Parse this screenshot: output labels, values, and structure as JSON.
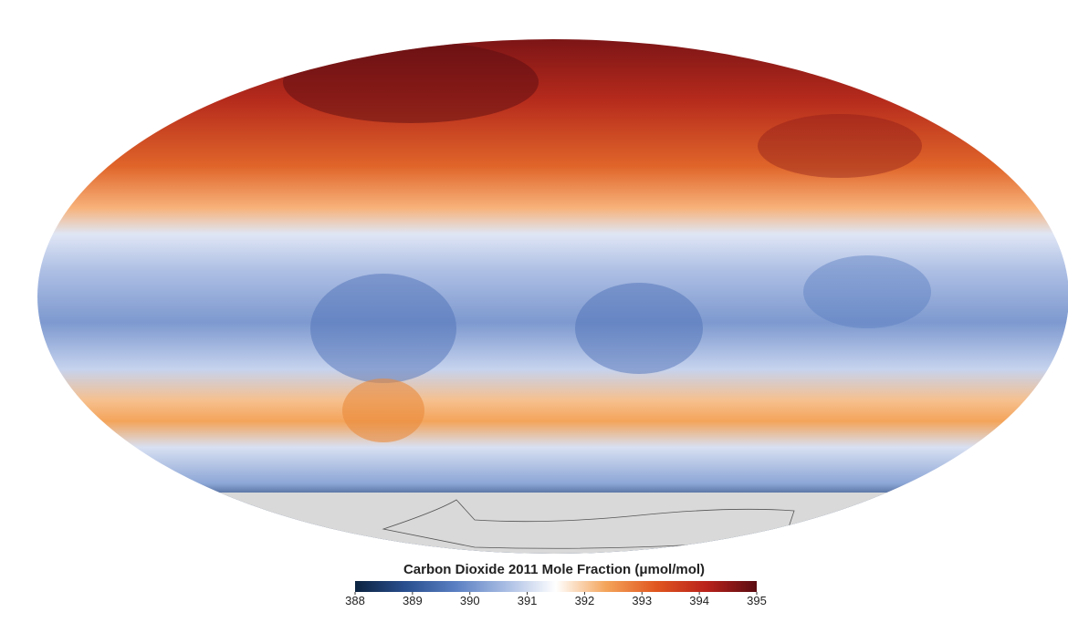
{
  "map": {
    "title": "Carbon Dioxide 2011 Mole Fraction (μmol/mol)",
    "colorbar": {
      "range": [
        388,
        395
      ],
      "ticks": [
        388,
        389,
        390,
        391,
        392,
        393,
        394,
        395
      ],
      "colors": [
        "#0b2340",
        "#2a4f8f",
        "#5a7fc2",
        "#a9bde3",
        "#ffffff",
        "#f4a45a",
        "#e0561f",
        "#b9221b",
        "#5a0c12"
      ]
    }
  }
}
